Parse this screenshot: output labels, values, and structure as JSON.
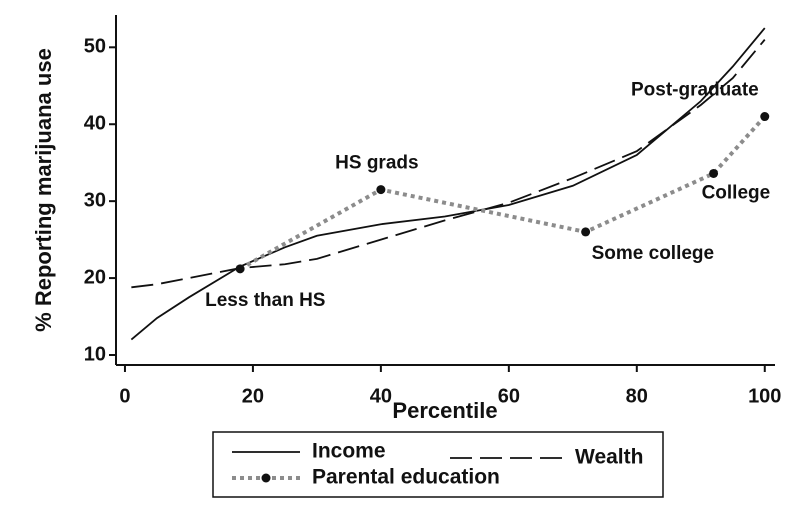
{
  "chart_data": {
    "type": "line",
    "xlabel": "Percentile",
    "ylabel": "% Reporting marijuana use",
    "xlim": [
      -1.4,
      101.6
    ],
    "ylim": [
      8.7,
      54.2
    ],
    "xticks": [
      0,
      20,
      40,
      60,
      80,
      100
    ],
    "yticks": [
      10,
      20,
      30,
      40,
      50
    ],
    "grid": false,
    "series": [
      {
        "name": "Income",
        "color": "#111111",
        "dash": "solid",
        "x": [
          1,
          5,
          10,
          18,
          25,
          30,
          40,
          50,
          60,
          70,
          80,
          90,
          95,
          100
        ],
        "values": [
          12,
          14.8,
          17.5,
          21.5,
          24,
          25.5,
          27,
          28,
          29.5,
          32,
          36,
          43,
          47.5,
          52.5
        ]
      },
      {
        "name": "Wealth",
        "color": "#111111",
        "dash": "long-dash",
        "x": [
          1,
          5,
          10,
          18,
          25,
          30,
          40,
          50,
          60,
          70,
          80,
          90,
          95,
          100
        ],
        "values": [
          18.8,
          19.2,
          20,
          21.3,
          21.8,
          22.5,
          25,
          27.5,
          29.8,
          33,
          36.5,
          42.5,
          46,
          51
        ]
      },
      {
        "name": "Parental education",
        "color": "#8c8c8c",
        "dash": "dot",
        "markers": true,
        "x": [
          18,
          40,
          72,
          92,
          100
        ],
        "values": [
          21.2,
          31.5,
          26,
          33.6,
          41
        ],
        "labels": [
          "Less than HS",
          "HS grads",
          "Some college",
          "College",
          "Post-graduate"
        ]
      }
    ]
  }
}
